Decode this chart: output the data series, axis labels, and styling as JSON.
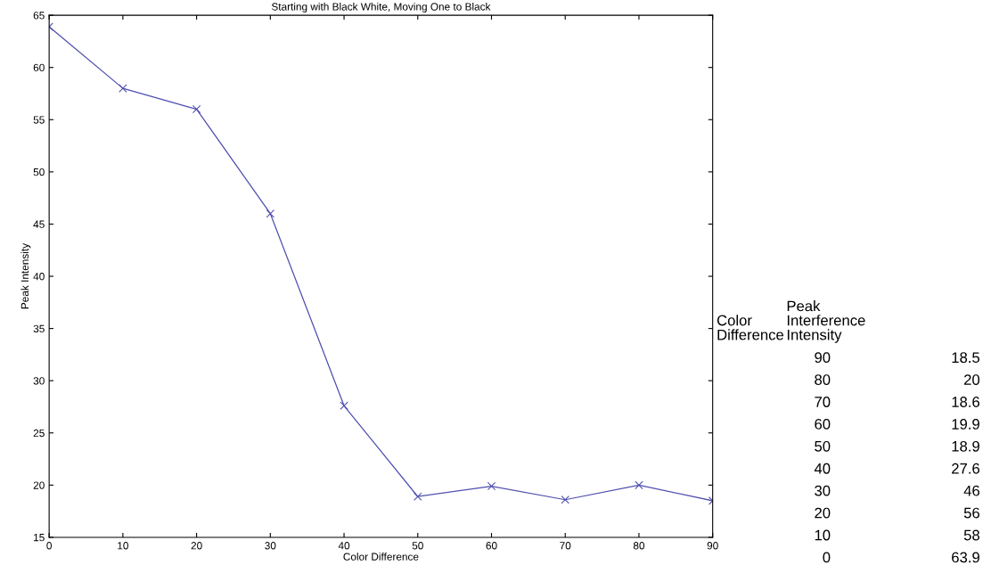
{
  "chart_data": {
    "type": "line",
    "title": "Starting with Black White, Moving One to Black",
    "xlabel": "Color Difference",
    "ylabel": "Peak Intensity",
    "x": [
      0,
      10,
      20,
      30,
      40,
      50,
      60,
      70,
      80,
      90
    ],
    "series": [
      {
        "color": "#4f4fb0",
        "values": [
          63.9,
          58,
          56,
          46,
          27.6,
          18.9,
          19.9,
          18.6,
          20,
          18.5
        ]
      }
    ],
    "xlim": [
      0,
      90
    ],
    "xticks": [
      0,
      10,
      20,
      30,
      40,
      50,
      60,
      70,
      80,
      90
    ],
    "ylim": [
      15,
      65
    ],
    "yticks": [
      15,
      20,
      25,
      30,
      35,
      40,
      45,
      50,
      55,
      60,
      65
    ],
    "marker": "cross",
    "line_style": "solid",
    "grid": false,
    "annotations": [
      "Color\nDifference",
      "Peak\nInterference\nIntensity",
      "90",
      "18.5",
      "80",
      "20",
      "70",
      "18.6",
      "60",
      "19.9",
      "50",
      "18.9",
      "40",
      "27.6",
      "30",
      "46",
      "20",
      "56",
      "10",
      "58",
      "0",
      "63.9"
    ]
  }
}
